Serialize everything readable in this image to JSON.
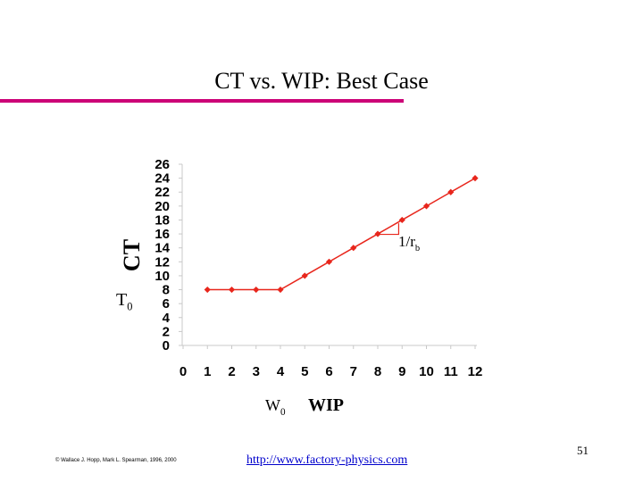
{
  "slide": {
    "title": "CT vs. WIP: Best Case",
    "footer_copyright": "© Wallace J. Hopp, Mark L. Spearman, 1996, 2000",
    "footer_url": "http://www.factory-physics.com",
    "page_number": "51"
  },
  "colors": {
    "accent_rule": "#cc0077",
    "series": "#e8261c",
    "link": "#0000cc"
  },
  "chart_data": {
    "type": "line",
    "xlabel": "WIP",
    "ylabel": "CT",
    "x_ticks": [
      0,
      1,
      2,
      3,
      4,
      5,
      6,
      7,
      8,
      9,
      10,
      11,
      12
    ],
    "y_ticks": [
      0,
      2,
      4,
      6,
      8,
      10,
      12,
      14,
      16,
      18,
      20,
      22,
      24,
      26
    ],
    "xlim": [
      0,
      12
    ],
    "ylim": [
      0,
      26
    ],
    "grid": false,
    "series": [
      {
        "x": [
          1,
          2,
          3,
          4,
          5,
          6,
          7,
          8,
          9,
          10,
          11,
          12
        ],
        "y": [
          8,
          8,
          8,
          8,
          10,
          12,
          14,
          16,
          18,
          20,
          22,
          24
        ]
      }
    ],
    "annotations": {
      "T0": {
        "base": "T",
        "sub": "0",
        "y": 8
      },
      "W0": {
        "base": "W",
        "sub": "0",
        "x": 4
      },
      "slope": {
        "base": "1/r",
        "sub": "b",
        "at_x": 8,
        "at_y": 16
      }
    }
  }
}
